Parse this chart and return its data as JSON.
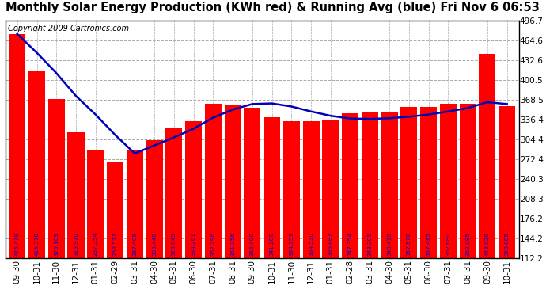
{
  "title": "Monthly Solar Energy Production (KWh red) & Running Avg (blue) Fri Nov 6 06:53",
  "copyright": "Copyright 2009 Cartronics.com",
  "categories": [
    "09-30",
    "10-31",
    "11-30",
    "12-31",
    "01-31",
    "02-29",
    "03-31",
    "04-30",
    "05-31",
    "06-30",
    "07-31",
    "08-31",
    "09-30",
    "10-31",
    "11-30",
    "12-31",
    "01-31",
    "02-28",
    "03-31",
    "04-30",
    "05-31",
    "06-30",
    "07-31",
    "08-31",
    "09-30",
    "10-31"
  ],
  "bar_values": [
    475.479,
    415.378,
    370.109,
    315.97,
    287.354,
    268.577,
    287.409,
    303.44,
    323.049,
    334.261,
    362.296,
    361.256,
    356.4,
    341.28,
    334.353,
    334.53,
    336.487,
    347.354,
    348.205,
    349.419,
    357.57,
    357.495,
    362.68,
    362.085,
    443.02,
    358.085
  ],
  "running_avg": [
    475.479,
    445.0,
    412.0,
    375.0,
    345.0,
    312.0,
    282.0,
    295.0,
    308.0,
    322.0,
    340.0,
    353.0,
    362.0,
    363.0,
    358.0,
    350.0,
    343.0,
    338.5,
    338.0,
    339.0,
    341.5,
    345.0,
    350.0,
    355.5,
    365.0,
    362.0
  ],
  "bar_color": "#ff0000",
  "line_color": "#0000bb",
  "text_color_bar": "#0000cc",
  "background_color": "#ffffff",
  "grid_color": "#aaaaaa",
  "ylim": [
    112.2,
    496.7
  ],
  "yticks": [
    112.2,
    144.2,
    176.2,
    208.3,
    240.3,
    272.4,
    304.4,
    336.4,
    368.5,
    400.5,
    432.6,
    464.6,
    496.7
  ],
  "title_fontsize": 10.5,
  "copyright_fontsize": 7,
  "bar_label_fontsize": 5.2,
  "tick_fontsize": 7.5
}
